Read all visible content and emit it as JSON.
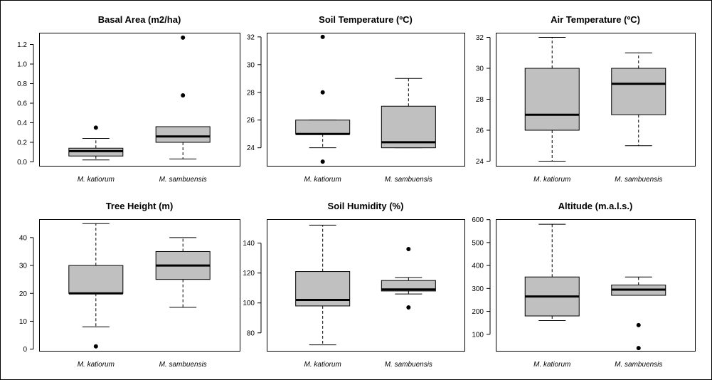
{
  "chart_data": [
    {
      "type": "box",
      "title": "Basal Area (m2/ha)",
      "categories": [
        "M. katiorum",
        "M. sambuensis"
      ],
      "ylim": [
        -0.04,
        1.32
      ],
      "yticks": [
        0.0,
        0.2,
        0.4,
        0.6,
        0.8,
        1.0,
        1.2
      ],
      "ytick_labels": [
        "0.0",
        "0.2",
        "0.4",
        "0.6",
        "0.8",
        "1.0",
        "1.2"
      ],
      "boxes": [
        {
          "min": 0.02,
          "q1": 0.06,
          "median": 0.11,
          "q3": 0.14,
          "max": 0.24,
          "outliers": [
            0.35
          ]
        },
        {
          "min": 0.03,
          "q1": 0.2,
          "median": 0.26,
          "q3": 0.36,
          "max": 0.36,
          "outliers": [
            0.68,
            1.27
          ]
        }
      ]
    },
    {
      "type": "box",
      "title": "Soil Temperature (ºC)",
      "categories": [
        "M. katiorum",
        "M. sambuensis"
      ],
      "ylim": [
        22.7,
        32.3
      ],
      "yticks": [
        24,
        26,
        28,
        30,
        32
      ],
      "ytick_labels": [
        "24",
        "26",
        "28",
        "30",
        "32"
      ],
      "boxes": [
        {
          "min": 24.0,
          "q1": 25.0,
          "median": 25.0,
          "q3": 26.0,
          "max": 26.0,
          "outliers": [
            23.0,
            28.0,
            32.0
          ]
        },
        {
          "min": 24.0,
          "q1": 24.0,
          "median": 24.4,
          "q3": 27.0,
          "max": 29.0,
          "outliers": []
        }
      ]
    },
    {
      "type": "box",
      "title": "Air Temperature (ºC)",
      "categories": [
        "M. katiorum",
        "M. sambuensis"
      ],
      "ylim": [
        23.7,
        32.3
      ],
      "yticks": [
        24,
        26,
        28,
        30,
        32
      ],
      "ytick_labels": [
        "24",
        "26",
        "28",
        "30",
        "32"
      ],
      "boxes": [
        {
          "min": 24.0,
          "q1": 26.0,
          "median": 27.0,
          "q3": 30.0,
          "max": 32.0,
          "outliers": []
        },
        {
          "min": 25.0,
          "q1": 27.0,
          "median": 29.0,
          "q3": 30.0,
          "max": 31.0,
          "outliers": []
        }
      ]
    },
    {
      "type": "box",
      "title": "Tree Height (m)",
      "categories": [
        "M. katiorum",
        "M. sambuensis"
      ],
      "ylim": [
        -0.6,
        46.6
      ],
      "yticks": [
        0,
        10,
        20,
        30,
        40
      ],
      "ytick_labels": [
        "0",
        "10",
        "20",
        "30",
        "40"
      ],
      "boxes": [
        {
          "min": 8.0,
          "q1": 20.0,
          "median": 20.0,
          "q3": 30.0,
          "max": 45.0,
          "outliers": [
            1.0
          ]
        },
        {
          "min": 15.0,
          "q1": 25.0,
          "median": 30.0,
          "q3": 35.0,
          "max": 40.0,
          "outliers": []
        }
      ]
    },
    {
      "type": "box",
      "title": "Soil Humidity (%)",
      "categories": [
        "M. katiorum",
        "M. sambuensis"
      ],
      "ylim": [
        68.0,
        156.0
      ],
      "yticks": [
        80,
        100,
        120,
        140
      ],
      "ytick_labels": [
        "80",
        "100",
        "120",
        "140"
      ],
      "boxes": [
        {
          "min": 72.0,
          "q1": 98.0,
          "median": 102.0,
          "q3": 121.0,
          "max": 152.0,
          "outliers": []
        },
        {
          "min": 106.0,
          "q1": 108.0,
          "median": 109.0,
          "q3": 115.0,
          "max": 117.0,
          "outliers": [
            97.0,
            136.0
          ]
        }
      ]
    },
    {
      "type": "box",
      "title": "Altitude (m.a.l.s.)",
      "categories": [
        "M. katiorum",
        "M. sambuensis"
      ],
      "ylim": [
        28.0,
        602.0
      ],
      "yticks": [
        100,
        200,
        300,
        400,
        500,
        600
      ],
      "ytick_labels": [
        "100",
        "200",
        "300",
        "400",
        "500",
        "600"
      ],
      "boxes": [
        {
          "min": 160.0,
          "q1": 180.0,
          "median": 265.0,
          "q3": 350.0,
          "max": 580.0,
          "outliers": []
        },
        {
          "min": 270.0,
          "q1": 270.0,
          "median": 295.0,
          "q3": 315.0,
          "max": 350.0,
          "outliers": [
            40.0,
            140.0
          ]
        }
      ]
    }
  ]
}
